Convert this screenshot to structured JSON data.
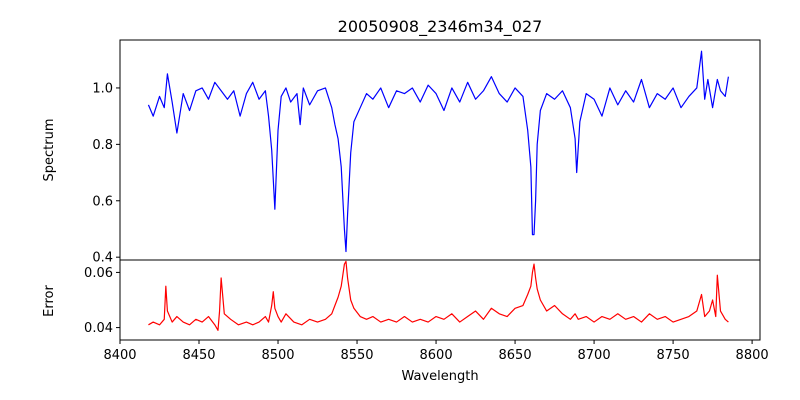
{
  "chart_data": {
    "type": "line",
    "title": "20050908_2346m34_027",
    "xlabel": "Wavelength",
    "x_ticks": [
      8400,
      8450,
      8500,
      8550,
      8600,
      8650,
      8700,
      8750,
      8800
    ],
    "xlim": [
      8400,
      8805
    ],
    "panels": [
      {
        "name": "spectrum",
        "ylabel": "Spectrum",
        "ylim": [
          0.39,
          1.17
        ],
        "y_ticks": [
          0.4,
          0.6,
          0.8,
          1.0
        ],
        "y_tick_labels": [
          "0.4",
          "0.6",
          "0.8",
          "1.0"
        ],
        "color": "#0000ff",
        "x": [
          8418,
          8421,
          8425,
          8428,
          8430,
          8433,
          8436,
          8440,
          8444,
          8448,
          8452,
          8456,
          8460,
          8464,
          8468,
          8472,
          8476,
          8480,
          8484,
          8488,
          8492,
          8494,
          8496,
          8498,
          8500,
          8502,
          8505,
          8508,
          8512,
          8514,
          8516,
          8520,
          8525,
          8530,
          8534,
          8536,
          8538,
          8540,
          8542,
          8543,
          8544,
          8546,
          8548,
          8552,
          8556,
          8560,
          8565,
          8570,
          8575,
          8580,
          8585,
          8590,
          8595,
          8600,
          8605,
          8610,
          8615,
          8620,
          8625,
          8630,
          8635,
          8640,
          8645,
          8650,
          8655,
          8658,
          8660,
          8661,
          8662,
          8663,
          8664,
          8666,
          8670,
          8675,
          8680,
          8685,
          8688,
          8689,
          8691,
          8695,
          8700,
          8705,
          8710,
          8715,
          8720,
          8725,
          8730,
          8735,
          8740,
          8745,
          8750,
          8755,
          8760,
          8765,
          8768,
          8770,
          8772,
          8775,
          8778,
          8780,
          8783,
          8785
        ],
        "y": [
          0.94,
          0.9,
          0.97,
          0.93,
          1.05,
          0.95,
          0.84,
          0.98,
          0.92,
          0.99,
          1.0,
          0.96,
          1.02,
          0.99,
          0.96,
          0.99,
          0.9,
          0.98,
          1.02,
          0.96,
          0.99,
          0.9,
          0.78,
          0.57,
          0.85,
          0.97,
          1.0,
          0.95,
          0.98,
          0.87,
          1.0,
          0.94,
          0.99,
          1.0,
          0.93,
          0.87,
          0.82,
          0.72,
          0.5,
          0.42,
          0.55,
          0.77,
          0.88,
          0.93,
          0.98,
          0.96,
          1.0,
          0.93,
          0.99,
          0.98,
          1.0,
          0.95,
          1.01,
          0.98,
          0.92,
          1.0,
          0.95,
          1.02,
          0.96,
          0.99,
          1.04,
          0.98,
          0.95,
          1.0,
          0.97,
          0.85,
          0.72,
          0.48,
          0.48,
          0.6,
          0.8,
          0.92,
          0.98,
          0.96,
          0.99,
          0.93,
          0.82,
          0.7,
          0.88,
          0.98,
          0.96,
          0.9,
          1.0,
          0.94,
          0.99,
          0.95,
          1.03,
          0.93,
          0.98,
          0.96,
          1.0,
          0.93,
          0.97,
          1.0,
          1.13,
          0.96,
          1.03,
          0.93,
          1.03,
          0.99,
          0.97,
          1.04
        ]
      },
      {
        "name": "error",
        "ylabel": "Error",
        "ylim": [
          0.0355,
          0.0645
        ],
        "y_ticks": [
          0.04,
          0.06
        ],
        "y_tick_labels": [
          "0.04",
          "0.06"
        ],
        "color": "#ff0000",
        "x": [
          8418,
          8421,
          8425,
          8428,
          8429,
          8430,
          8433,
          8436,
          8440,
          8444,
          8448,
          8452,
          8456,
          8460,
          8462,
          8463,
          8464,
          8466,
          8470,
          8475,
          8480,
          8484,
          8488,
          8492,
          8494,
          8496,
          8497,
          8498,
          8500,
          8502,
          8505,
          8510,
          8515,
          8520,
          8525,
          8530,
          8534,
          8536,
          8538,
          8540,
          8542,
          8543,
          8544,
          8546,
          8548,
          8552,
          8556,
          8560,
          8565,
          8570,
          8575,
          8580,
          8585,
          8590,
          8595,
          8600,
          8605,
          8610,
          8615,
          8620,
          8625,
          8630,
          8635,
          8640,
          8645,
          8650,
          8655,
          8658,
          8660,
          8661,
          8662,
          8663,
          8664,
          8666,
          8670,
          8675,
          8680,
          8685,
          8688,
          8690,
          8695,
          8700,
          8705,
          8710,
          8715,
          8720,
          8725,
          8730,
          8735,
          8740,
          8745,
          8750,
          8755,
          8760,
          8765,
          8768,
          8770,
          8773,
          8775,
          8777,
          8778,
          8780,
          8783,
          8785
        ],
        "y": [
          0.041,
          0.042,
          0.041,
          0.043,
          0.055,
          0.046,
          0.042,
          0.044,
          0.042,
          0.041,
          0.043,
          0.042,
          0.044,
          0.041,
          0.039,
          0.046,
          0.058,
          0.045,
          0.043,
          0.041,
          0.042,
          0.041,
          0.042,
          0.044,
          0.042,
          0.048,
          0.053,
          0.047,
          0.044,
          0.042,
          0.045,
          0.042,
          0.041,
          0.043,
          0.042,
          0.043,
          0.045,
          0.048,
          0.051,
          0.055,
          0.063,
          0.064,
          0.058,
          0.05,
          0.047,
          0.044,
          0.043,
          0.044,
          0.042,
          0.043,
          0.042,
          0.044,
          0.042,
          0.043,
          0.042,
          0.044,
          0.043,
          0.045,
          0.042,
          0.044,
          0.046,
          0.043,
          0.047,
          0.045,
          0.044,
          0.047,
          0.048,
          0.052,
          0.055,
          0.06,
          0.063,
          0.058,
          0.054,
          0.05,
          0.046,
          0.048,
          0.045,
          0.043,
          0.045,
          0.043,
          0.044,
          0.042,
          0.044,
          0.043,
          0.045,
          0.043,
          0.044,
          0.042,
          0.045,
          0.043,
          0.044,
          0.042,
          0.043,
          0.044,
          0.046,
          0.052,
          0.044,
          0.046,
          0.05,
          0.044,
          0.059,
          0.046,
          0.043,
          0.042
        ]
      }
    ]
  }
}
